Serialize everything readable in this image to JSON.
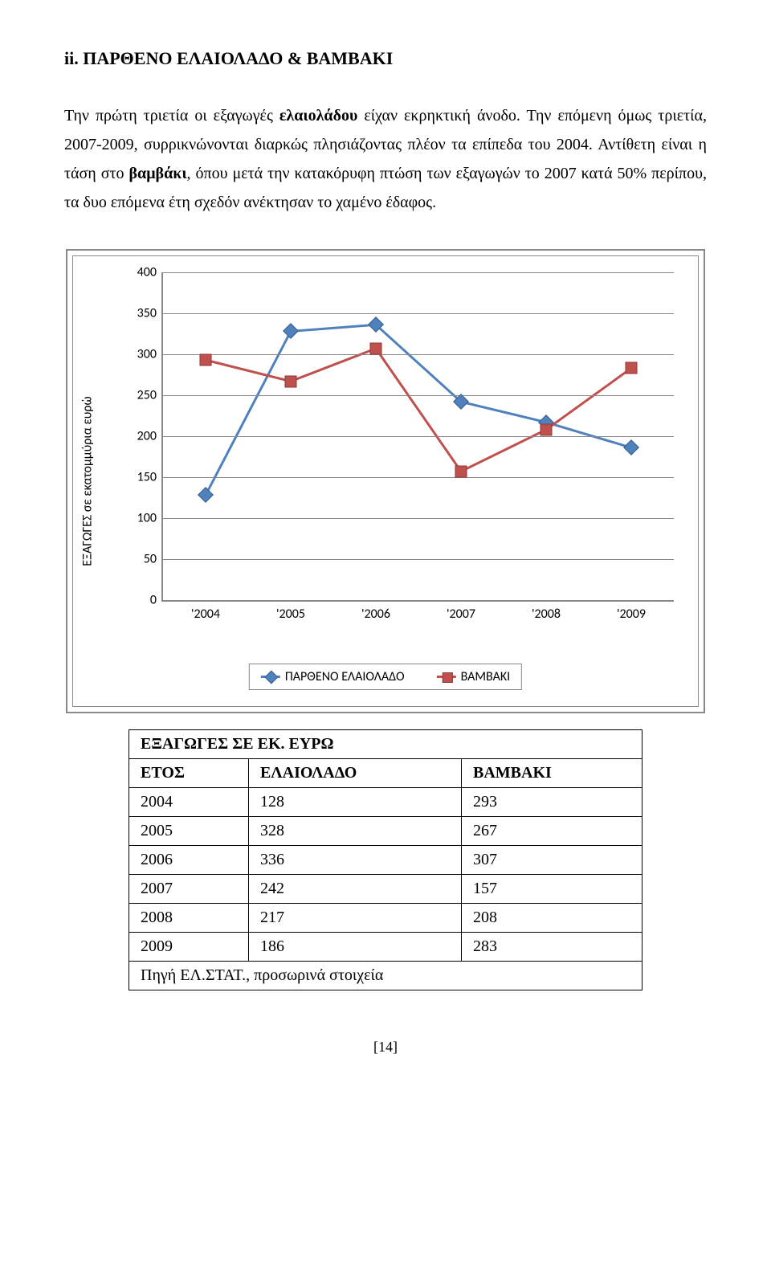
{
  "heading": "ii.  ΠΑΡΘΕΝΟ ΕΛΑΙΟΛΑΔΟ & ΒΑΜΒΑΚΙ",
  "para": {
    "t1": "Την πρώτη τριετία οι εξαγωγές ",
    "b1": "ελαιολάδου",
    "t2": " είχαν εκρηκτική άνοδο. Την επόμενη όμως τριετία, 2007-2009, συρρικνώνονται διαρκώς πλησιάζοντας πλέον τα επίπεδα του 2004. Αντίθετη είναι η τάση στο ",
    "b2": "βαμβάκι",
    "t3": ", όπου μετά την κατακόρυφη πτώση των εξαγωγών το 2007 κατά 50% περίπου, τα δυο επόμενα έτη σχεδόν ανέκτησαν το χαμένο έδαφος."
  },
  "chart": {
    "type": "line",
    "yaxis_label": "ΕΞΑΓΩΓΕΣ σε εκατομμύρια ευρώ",
    "ylim": [
      0,
      400
    ],
    "ytick_step": 50,
    "yticks": [
      0,
      50,
      100,
      150,
      200,
      250,
      300,
      350,
      400
    ],
    "categories": [
      "'2004",
      "'2005",
      "'2006",
      "'2007",
      "'2008",
      "'2009"
    ],
    "series1": {
      "name": "ΠΑΡΘΕΝΟ ΕΛΑΙΟΛΑΔΟ",
      "color": "#4f81bd",
      "marker_color": "#385d8a",
      "values": [
        128,
        328,
        336,
        242,
        217,
        186
      ]
    },
    "series2": {
      "name": "ΒΑΜΒΑΚΙ",
      "color": "#c0504d",
      "marker_color": "#8c3a37",
      "values": [
        293,
        267,
        307,
        157,
        208,
        283
      ]
    },
    "grid_color": "#888888",
    "line_width": 3,
    "marker_size": 12
  },
  "table": {
    "title": "ΕΞΑΓΩΓΕΣ ΣΕ ΕΚ. ΕΥΡΩ",
    "headers": [
      "ΕΤΟΣ",
      "ΕΛΑΙΟΛΑΔΟ",
      "ΒΑΜΒΑΚΙ"
    ],
    "rows": [
      [
        "2004",
        "128",
        "293"
      ],
      [
        "2005",
        "328",
        "267"
      ],
      [
        "2006",
        "336",
        "307"
      ],
      [
        "2007",
        "242",
        "157"
      ],
      [
        "2008",
        "217",
        "208"
      ],
      [
        "2009",
        "186",
        "283"
      ]
    ],
    "source": "Πηγή ΕΛ.ΣΤΑΤ., προσωρινά στοιχεία"
  },
  "footer": "[14]"
}
